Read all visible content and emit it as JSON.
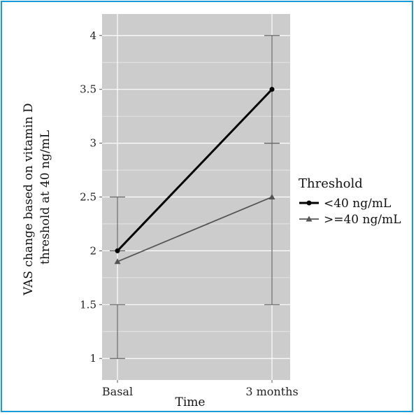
{
  "chart_data": {
    "type": "line",
    "categories": [
      "Basal",
      "3 months"
    ],
    "xlabel": "Time",
    "ylabel_lines": [
      "VAS change based on vitamin D",
      "threshold at 40 ng/mL"
    ],
    "ylim": [
      0.8,
      4.2
    ],
    "yticks": [
      "1",
      "1.5",
      "2",
      "2.5",
      "3",
      "3.5",
      "4"
    ],
    "grid": true,
    "legend_position": "right",
    "legend_title": "Threshold",
    "series": [
      {
        "name": "<40 ng/mL",
        "values": [
          2.0,
          3.5
        ],
        "error_low": [
          2.0,
          3.0
        ],
        "error_high": [
          2.5,
          4.0
        ],
        "marker": "circle",
        "color": "#000000"
      },
      {
        "name": ">=40 ng/mL",
        "values": [
          1.9,
          2.5
        ],
        "error_low": [
          1.0,
          1.5
        ],
        "error_high": [
          1.5,
          3.0
        ],
        "marker": "triangle",
        "color": "#555555"
      }
    ],
    "colors": {
      "panel": "#cccccc",
      "grid": "#ffffff",
      "errorbar": "#666666"
    }
  }
}
